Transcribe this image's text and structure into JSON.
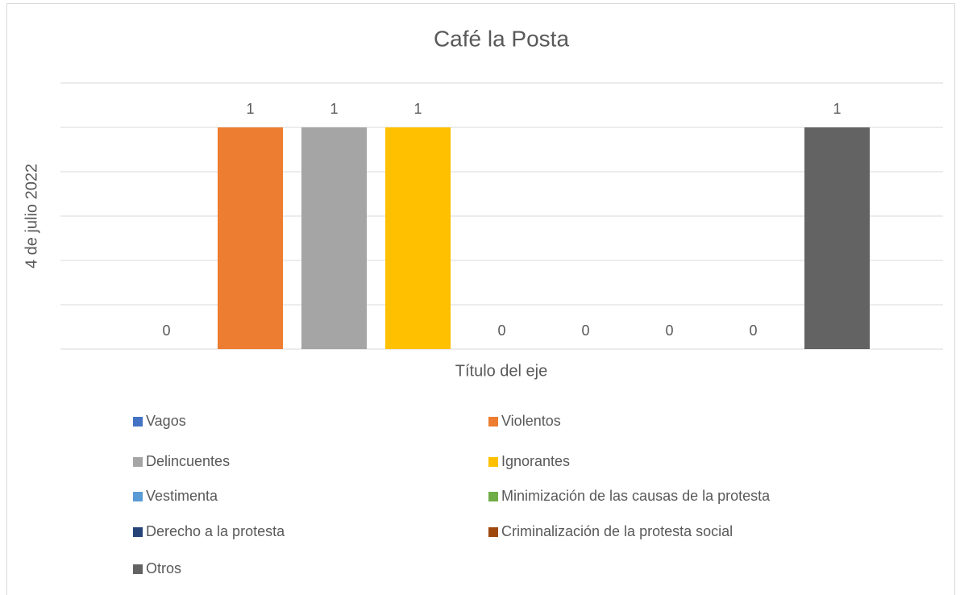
{
  "chart_data": {
    "type": "bar",
    "title": "Café la Posta",
    "xlabel": "Título del eje",
    "ylabel": "4 de julio 2022",
    "categories": [
      null
    ],
    "series": [
      {
        "name": "Vagos",
        "color": "#4472c4",
        "values": [
          0
        ]
      },
      {
        "name": "Violentos",
        "color": "#ed7d31",
        "values": [
          1
        ]
      },
      {
        "name": "Delincuentes",
        "color": "#a5a5a5",
        "values": [
          1
        ]
      },
      {
        "name": "Ignorantes",
        "color": "#ffc000",
        "values": [
          1
        ]
      },
      {
        "name": "Vestimenta",
        "color": "#5b9bd5",
        "values": [
          0
        ]
      },
      {
        "name": "Minimización de las causas de la protesta",
        "color": "#70ad47",
        "values": [
          0
        ]
      },
      {
        "name": "Derecho a la protesta",
        "color": "#264478",
        "values": [
          0
        ]
      },
      {
        "name": "Criminalización de la protesta social",
        "color": "#9e480e",
        "values": [
          0
        ]
      },
      {
        "name": "Otros",
        "color": "#636363",
        "values": [
          1
        ]
      }
    ],
    "ylim": [
      0,
      1.2
    ],
    "yticks": [
      0,
      0.2,
      0.4,
      0.6,
      0.8,
      1,
      1.2
    ],
    "grid": true,
    "legend": "bottom"
  }
}
